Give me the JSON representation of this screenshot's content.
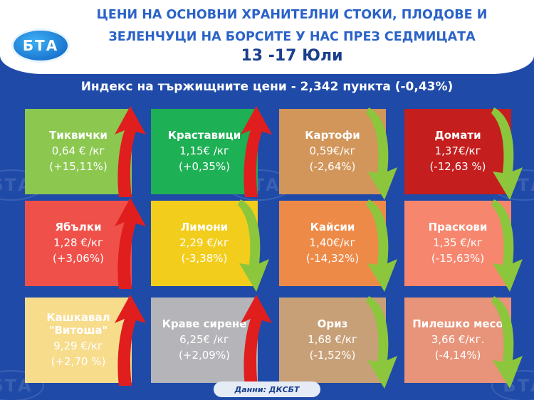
{
  "header": {
    "logo_text": "БТА",
    "title_line1": "ЦЕНИ НА ОСНОВНИ ХРАНИТЕЛНИ СТОКИ, ПЛОДОВЕ И",
    "title_line2": "ЗЕЛЕНЧУЦИ НА БОРСИТЕ У НАС ПРЕЗ СЕДМИЦАТА",
    "date": "13 -17 Юли"
  },
  "index_line": "Индекс на тържищните цени - 2,342 пункта (-0,43%)",
  "products": [
    {
      "name": "Тиквички",
      "price": "0,64 € /кг",
      "change": "(+15,11%)",
      "trend": "up",
      "color": "#8cc850"
    },
    {
      "name": "Краставици",
      "price": "1,15€ /кг",
      "change": "(+0,35%)",
      "trend": "up",
      "color": "#1eb055"
    },
    {
      "name": "Картофи",
      "price": "0,59€/кг",
      "change": "(-2,64%)",
      "trend": "down",
      "color": "#d2955a"
    },
    {
      "name": "Домати",
      "price": "1,37€/кг",
      "change": "(-12,63 %)",
      "trend": "down",
      "color": "#c41e1e"
    },
    {
      "name": "Ябълки",
      "price": "1,28 €/кг",
      "change": "(+3,06%)",
      "trend": "up",
      "color": "#f0504a"
    },
    {
      "name": "Лимони",
      "price": "2,29 €/кг",
      "change": "(-3,38%)",
      "trend": "down",
      "color": "#f2cd1c"
    },
    {
      "name": "Кайсии",
      "price": "1,40€/кг",
      "change": "(-14,32%)",
      "trend": "down",
      "color": "#ee8a48"
    },
    {
      "name": "Праскови",
      "price": "1,35 €/кг",
      "change": "(-15,63%)",
      "trend": "down",
      "color": "#f7866e"
    },
    {
      "name": "Кашкавал \"Витоша\"",
      "price": "9,29 €/кг",
      "change": "(+2,70 %)",
      "trend": "up",
      "color": "#f7dc8c"
    },
    {
      "name": "Краве сирене",
      "price": "6,25€ /кг",
      "change": "(+2,09%)",
      "trend": "up",
      "color": "#b4b4b9"
    },
    {
      "name": "Ориз",
      "price": "1,68 €/кг",
      "change": "(-1,52%)",
      "trend": "down",
      "color": "#c8a078"
    },
    {
      "name": "Пилешко месо",
      "price": "3,66 €/кг.",
      "change": "(-4,14%)",
      "trend": "down",
      "color": "#e8947a"
    }
  ],
  "colors": {
    "background": "#1f4aa8",
    "arrow_up": "#e01e1e",
    "arrow_down": "#8cc63c"
  },
  "source": "Данни: ДКСБТ"
}
